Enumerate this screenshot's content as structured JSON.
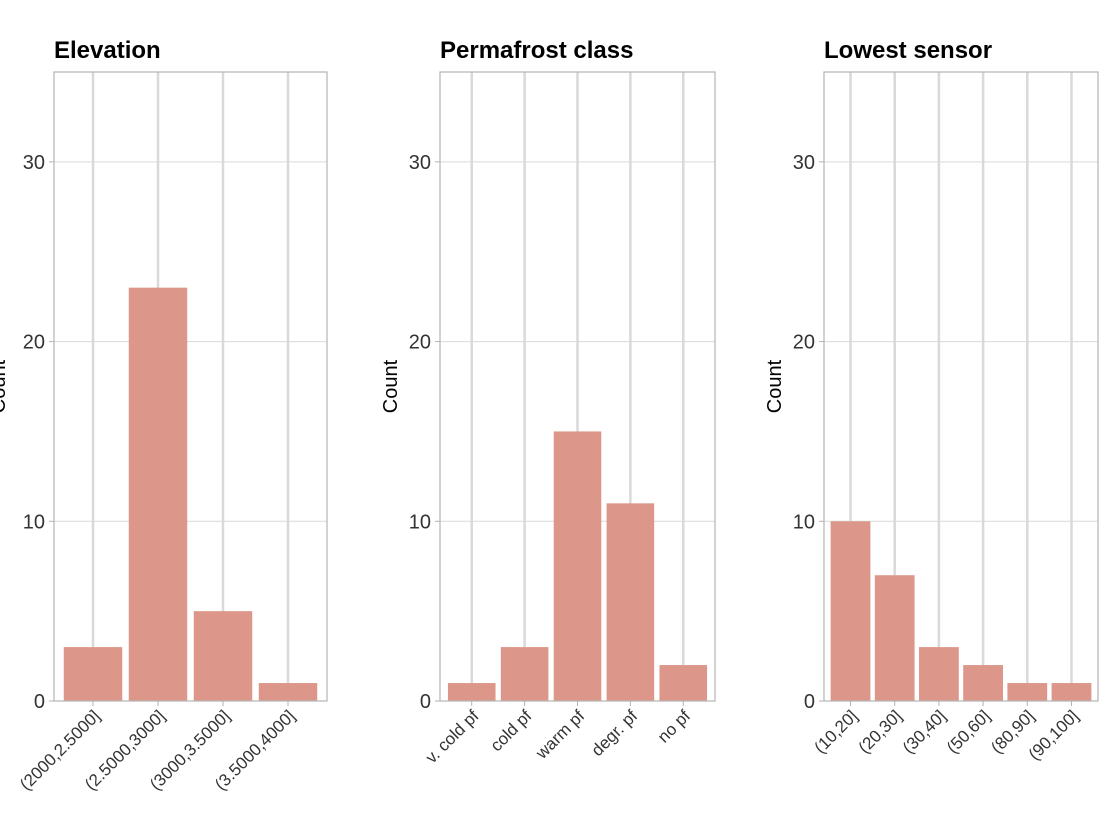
{
  "colors": {
    "bar": "#dd978a",
    "grid": "#d9d9d9",
    "frame": "#b3b3b3"
  },
  "chart_data": [
    {
      "type": "bar",
      "title": "Elevation",
      "ylabel": "Count",
      "ylim": [
        0,
        35
      ],
      "yticks": [
        0,
        10,
        20,
        30
      ],
      "categories": [
        "(2000,2.5000]",
        "(2.5000,3000]",
        "(3000,3.5000]",
        "(3.5000,4000]"
      ],
      "values": [
        3,
        23,
        5,
        1
      ],
      "grid": true
    },
    {
      "type": "bar",
      "title": "Permafrost class",
      "ylabel": "Count",
      "ylim": [
        0,
        35
      ],
      "yticks": [
        0,
        10,
        20,
        30
      ],
      "categories": [
        "v. cold pf",
        "cold pf",
        "warm pf",
        "degr. pf",
        "no pf"
      ],
      "values": [
        1,
        3,
        15,
        11,
        2
      ],
      "grid": true
    },
    {
      "type": "bar",
      "title": "Lowest sensor",
      "ylabel": "Count",
      "ylim": [
        0,
        35
      ],
      "yticks": [
        0,
        10,
        20,
        30
      ],
      "categories": [
        "(10,20]",
        "(20,30]",
        "(30,40]",
        "(50,60]",
        "(80,90]",
        "(90,100]"
      ],
      "values": [
        10,
        7,
        3,
        2,
        1,
        1
      ],
      "grid": true
    }
  ]
}
